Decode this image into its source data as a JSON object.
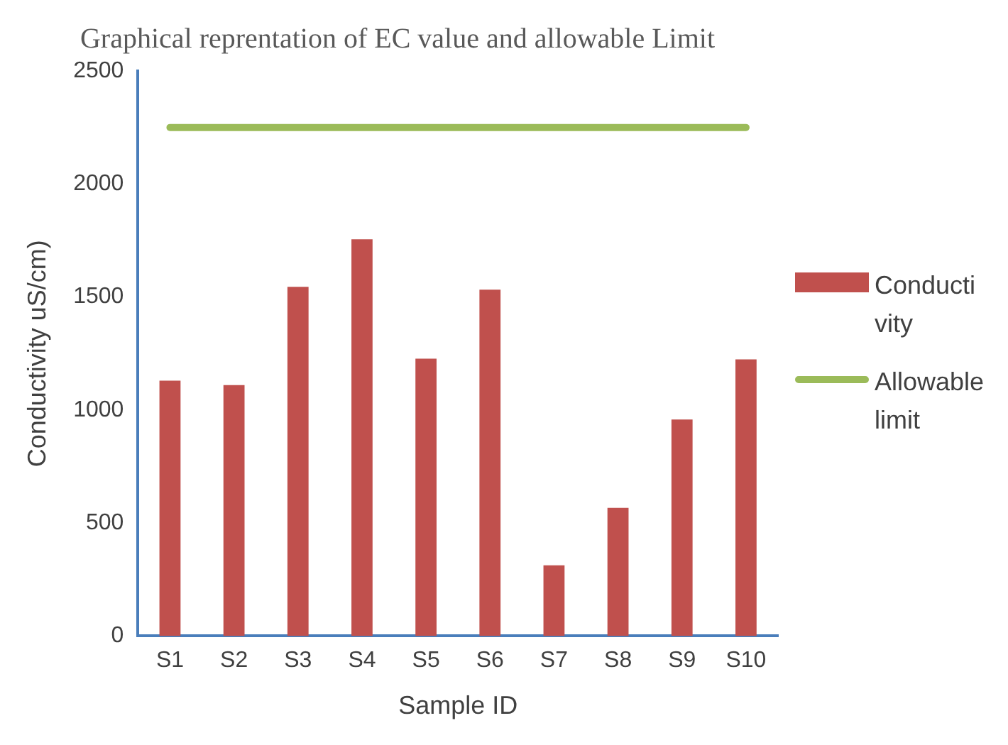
{
  "chart_data": {
    "type": "bar",
    "title": "Graphical reprentation of EC value and allowable Limit",
    "xlabel": "Sample ID",
    "ylabel": "Conductivity uS/cm)",
    "categories": [
      "S1",
      "S2",
      "S3",
      "S4",
      "S5",
      "S6",
      "S7",
      "S8",
      "S9",
      "S10"
    ],
    "series": [
      {
        "name": "Conductivity",
        "color": "#c0504d",
        "values": [
          1130,
          1110,
          1545,
          1755,
          1227,
          1532,
          313,
          567,
          958,
          1224
        ]
      },
      {
        "name": "Allowable limit",
        "type": "line",
        "color": "#9bbb59",
        "values": [
          2250,
          2250,
          2250,
          2250,
          2250,
          2250,
          2250,
          2250,
          2250,
          2250
        ]
      }
    ],
    "ylim": [
      0,
      2500
    ],
    "yticks": [
      0,
      500,
      1000,
      1500,
      2000,
      2500
    ],
    "grid": false,
    "legend": "right",
    "marker": "none"
  }
}
